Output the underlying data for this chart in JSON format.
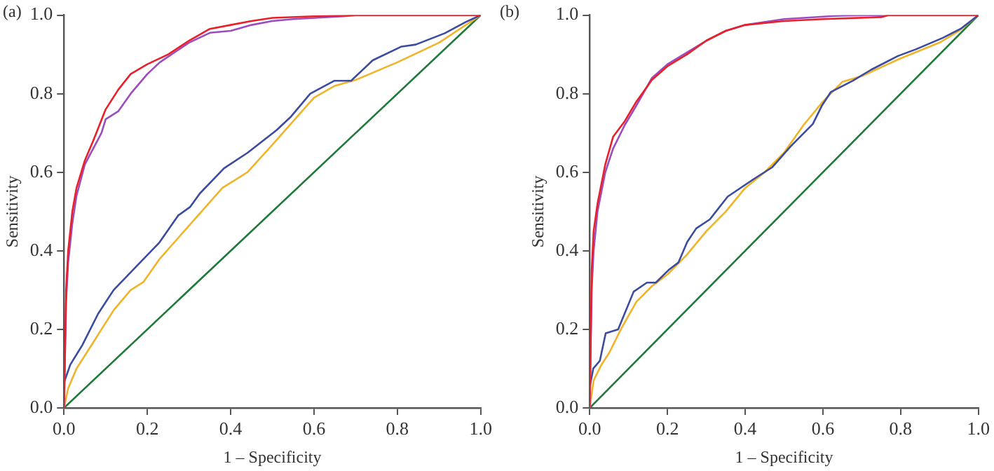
{
  "chart_data": [
    {
      "type": "line",
      "title": "(a)",
      "xlabel": "1 – Specificity",
      "ylabel": "Sensitivity",
      "xlim": [
        0,
        1
      ],
      "ylim": [
        0,
        1
      ],
      "xticks": [
        {
          "value": 0,
          "label": "0.0"
        },
        {
          "value": 0.2,
          "label": "0.2"
        },
        {
          "value": 0.4,
          "label": "0.4"
        },
        {
          "value": 0.6,
          "label": "0.6"
        },
        {
          "value": 0.8,
          "label": "0.8"
        },
        {
          "value": 1,
          "label": "1.0"
        }
      ],
      "yticks": [
        {
          "value": 0,
          "label": "0.0"
        },
        {
          "value": 0.2,
          "label": "0.2"
        },
        {
          "value": 0.4,
          "label": "0.4"
        },
        {
          "value": 0.6,
          "label": "0.6"
        },
        {
          "value": 0.8,
          "label": "0.8"
        },
        {
          "value": 1,
          "label": "1.0"
        }
      ],
      "grid": false,
      "legend": false,
      "marker": "none",
      "line_style": "solid",
      "series": [
        {
          "color": "#1f7a3a",
          "x": [
            0,
            1
          ],
          "values": [
            0,
            1
          ]
        },
        {
          "color": "#f0b429",
          "x": [
            0,
            0.01,
            0.03,
            0.06,
            0.09,
            0.12,
            0.16,
            0.19,
            0.23,
            0.28,
            0.33,
            0.38,
            0.44,
            0.5,
            0.55,
            0.6,
            0.65,
            0.7,
            0.8,
            0.9,
            1
          ],
          "values": [
            0,
            0.05,
            0.1,
            0.15,
            0.2,
            0.25,
            0.3,
            0.32,
            0.38,
            0.44,
            0.5,
            0.56,
            0.6,
            0.67,
            0.73,
            0.79,
            0.82,
            0.835,
            0.88,
            0.93,
            1
          ]
        },
        {
          "color": "#3b4ba0",
          "x": [
            0,
            0.015,
            0.044,
            0.082,
            0.119,
            0.176,
            0.228,
            0.274,
            0.303,
            0.326,
            0.384,
            0.441,
            0.51,
            0.545,
            0.591,
            0.649,
            0.689,
            0.741,
            0.81,
            0.844,
            0.914,
            0.965,
            1
          ],
          "values": [
            0.064,
            0.11,
            0.16,
            0.24,
            0.3,
            0.363,
            0.42,
            0.49,
            0.512,
            0.546,
            0.61,
            0.65,
            0.707,
            0.742,
            0.8,
            0.833,
            0.833,
            0.885,
            0.92,
            0.925,
            0.954,
            0.983,
            1
          ]
        },
        {
          "color": "#9b4dc0",
          "x": [
            0,
            0.005,
            0.01,
            0.02,
            0.03,
            0.05,
            0.07,
            0.09,
            0.1,
            0.13,
            0.16,
            0.2,
            0.23,
            0.3,
            0.35,
            0.4,
            0.45,
            0.5,
            0.55,
            0.67,
            0.7,
            1
          ],
          "values": [
            0,
            0.27,
            0.37,
            0.47,
            0.54,
            0.62,
            0.66,
            0.7,
            0.735,
            0.755,
            0.8,
            0.85,
            0.88,
            0.93,
            0.955,
            0.96,
            0.975,
            0.985,
            0.99,
            0.997,
            1,
            1
          ]
        },
        {
          "color": "#e8202a",
          "x": [
            0,
            0.005,
            0.01,
            0.02,
            0.03,
            0.05,
            0.07,
            0.1,
            0.13,
            0.16,
            0.2,
            0.25,
            0.3,
            0.35,
            0.4,
            0.45,
            0.5,
            0.6,
            0.7,
            1
          ],
          "values": [
            0,
            0.3,
            0.4,
            0.5,
            0.56,
            0.63,
            0.68,
            0.76,
            0.81,
            0.85,
            0.875,
            0.9,
            0.935,
            0.965,
            0.975,
            0.985,
            0.993,
            0.997,
            1,
            1
          ]
        }
      ]
    },
    {
      "type": "line",
      "title": "(b)",
      "xlabel": "1 – Specificity",
      "ylabel": "Sensitivity",
      "xlim": [
        0,
        1
      ],
      "ylim": [
        0,
        1
      ],
      "xticks": [
        {
          "value": 0,
          "label": "0.0"
        },
        {
          "value": 0.2,
          "label": "0.2"
        },
        {
          "value": 0.4,
          "label": "0.4"
        },
        {
          "value": 0.6,
          "label": "0.6"
        },
        {
          "value": 0.8,
          "label": "0.8"
        },
        {
          "value": 1,
          "label": "1.0"
        }
      ],
      "yticks": [
        {
          "value": 0,
          "label": "0.0"
        },
        {
          "value": 0.2,
          "label": "0.2"
        },
        {
          "value": 0.4,
          "label": "0.4"
        },
        {
          "value": 0.6,
          "label": "0.6"
        },
        {
          "value": 0.8,
          "label": "0.8"
        },
        {
          "value": 1,
          "label": "1.0"
        }
      ],
      "grid": false,
      "legend": false,
      "marker": "none",
      "line_style": "solid",
      "series": [
        {
          "color": "#1f7a3a",
          "x": [
            0,
            1
          ],
          "values": [
            0,
            1
          ]
        },
        {
          "color": "#f0b429",
          "x": [
            0,
            0.01,
            0.03,
            0.05,
            0.08,
            0.12,
            0.16,
            0.2,
            0.25,
            0.3,
            0.35,
            0.4,
            0.45,
            0.5,
            0.55,
            0.6,
            0.65,
            0.7,
            0.8,
            0.9,
            0.95,
            1
          ],
          "values": [
            0,
            0.07,
            0.11,
            0.14,
            0.2,
            0.27,
            0.31,
            0.34,
            0.39,
            0.45,
            0.5,
            0.56,
            0.6,
            0.65,
            0.72,
            0.78,
            0.83,
            0.845,
            0.89,
            0.93,
            0.96,
            1
          ]
        },
        {
          "color": "#3b4ba0",
          "x": [
            0,
            0.009,
            0.026,
            0.041,
            0.073,
            0.113,
            0.147,
            0.17,
            0.205,
            0.228,
            0.251,
            0.274,
            0.309,
            0.355,
            0.424,
            0.47,
            0.516,
            0.574,
            0.597,
            0.62,
            0.677,
            0.724,
            0.793,
            0.839,
            0.908,
            0.954,
            1
          ],
          "values": [
            0.053,
            0.1,
            0.12,
            0.19,
            0.2,
            0.296,
            0.319,
            0.319,
            0.353,
            0.37,
            0.423,
            0.457,
            0.48,
            0.538,
            0.584,
            0.613,
            0.665,
            0.723,
            0.769,
            0.804,
            0.833,
            0.861,
            0.896,
            0.913,
            0.942,
            0.965,
            1
          ]
        },
        {
          "color": "#9b4dc0",
          "x": [
            0,
            0.005,
            0.01,
            0.02,
            0.04,
            0.06,
            0.09,
            0.12,
            0.16,
            0.2,
            0.25,
            0.3,
            0.35,
            0.4,
            0.5,
            0.63,
            0.7,
            1
          ],
          "values": [
            0,
            0.3,
            0.4,
            0.5,
            0.6,
            0.66,
            0.72,
            0.77,
            0.84,
            0.875,
            0.905,
            0.935,
            0.96,
            0.975,
            0.99,
            0.998,
            1,
            1
          ]
        },
        {
          "color": "#e8202a",
          "x": [
            0,
            0.005,
            0.01,
            0.02,
            0.04,
            0.06,
            0.09,
            0.12,
            0.16,
            0.2,
            0.25,
            0.3,
            0.35,
            0.4,
            0.5,
            0.6,
            0.75,
            0.77,
            1
          ],
          "values": [
            0,
            0.35,
            0.45,
            0.52,
            0.62,
            0.69,
            0.73,
            0.78,
            0.835,
            0.87,
            0.9,
            0.935,
            0.96,
            0.975,
            0.985,
            0.99,
            0.995,
            1,
            1
          ]
        }
      ]
    }
  ]
}
